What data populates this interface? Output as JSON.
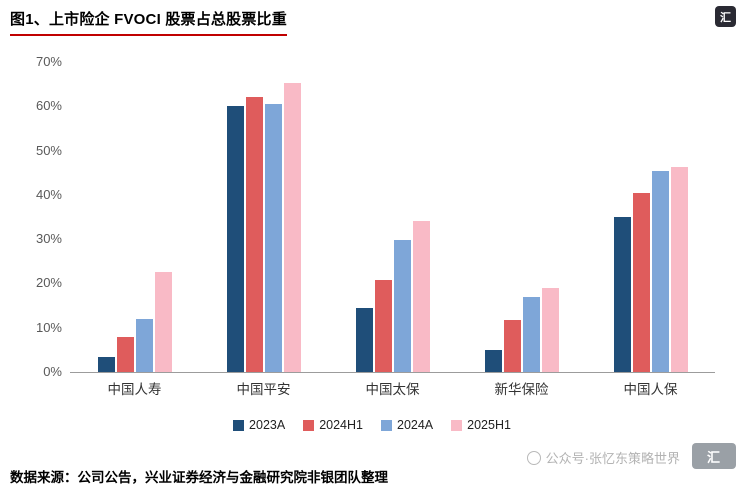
{
  "title": "图1、上市险企 FVOCI 股票占总股票比重",
  "top_logo_glyph": "汇",
  "chart_data": {
    "type": "bar",
    "title": "上市险企 FVOCI 股票占总股票比重",
    "categories": [
      "中国人寿",
      "中国平安",
      "中国太保",
      "新华保险",
      "中国人保"
    ],
    "series": [
      {
        "name": "2023A",
        "color": "#1f4e79",
        "values": [
          3.5,
          60.0,
          14.5,
          5.0,
          35.0
        ]
      },
      {
        "name": "2024H1",
        "color": "#df5c5c",
        "values": [
          8.0,
          62.0,
          20.8,
          11.8,
          40.5
        ]
      },
      {
        "name": "2024A",
        "color": "#7ea6d8",
        "values": [
          12.0,
          60.5,
          29.7,
          17.0,
          45.3
        ]
      },
      {
        "name": "2025H1",
        "color": "#f9bac6",
        "values": [
          22.5,
          65.3,
          34.0,
          19.0,
          46.3
        ]
      }
    ],
    "ylim": [
      0,
      70
    ],
    "ytick_step": 10,
    "ytick_suffix": "%",
    "xlabel": "",
    "ylabel": "",
    "grid": false,
    "legend_position": "bottom"
  },
  "watermark": {
    "text": "公众号·张忆东策略世界",
    "logo_text": "汇"
  },
  "footer": {
    "source": "数据来源：公司公告，兴业证券经济与金融研究院非银团队整理"
  }
}
